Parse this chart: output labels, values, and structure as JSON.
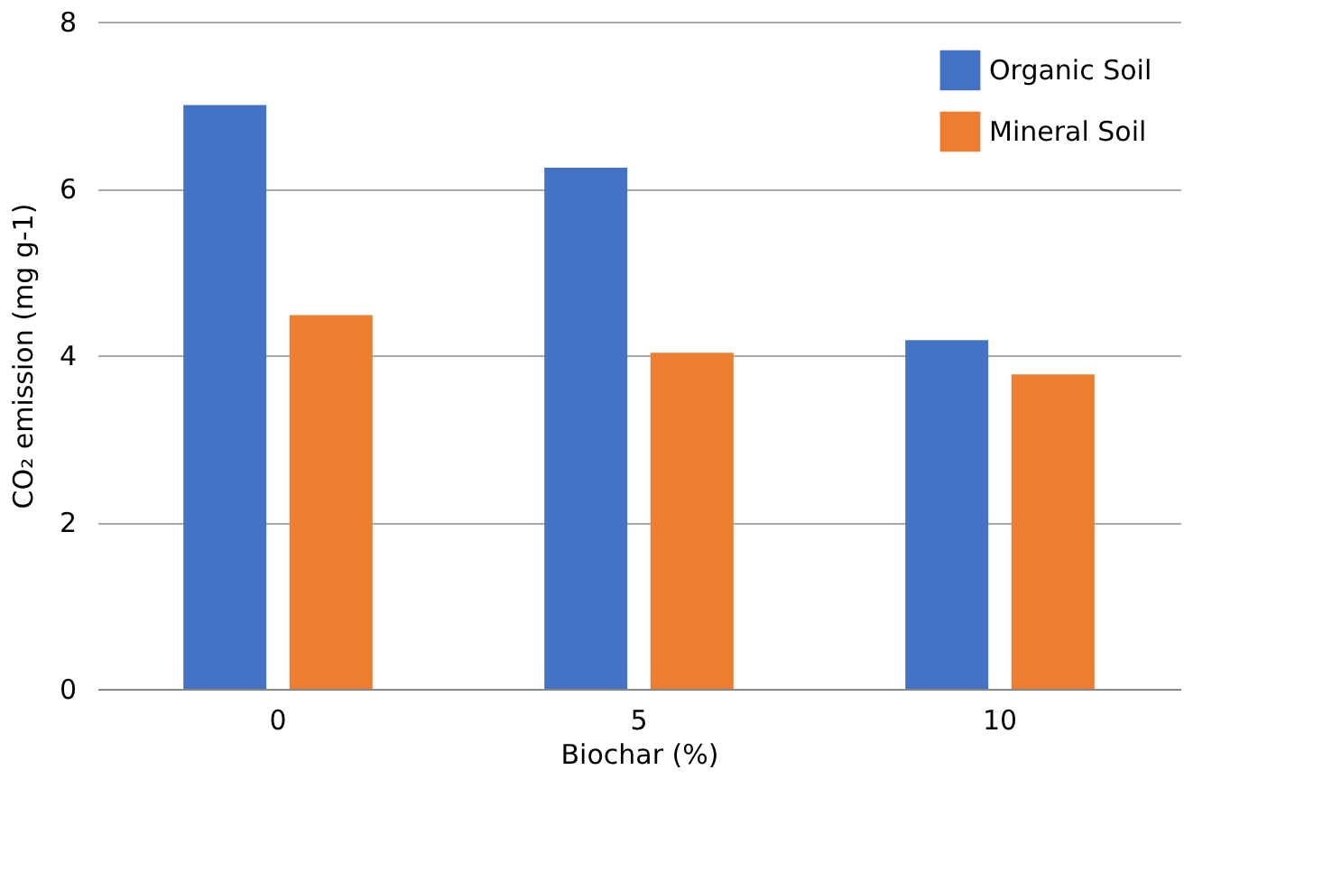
{
  "chart_data": {
    "type": "bar",
    "xlabel": "Biochar (%)",
    "ylabel": "CO₂ emission (mg g-1)",
    "categories": [
      "0",
      "5",
      "10"
    ],
    "series": [
      {
        "name": "Organic Soil",
        "color": "#4472c4",
        "values": [
          7.0,
          6.25,
          4.18
        ]
      },
      {
        "name": "Mineral Soil",
        "color": "#ed7d31",
        "values": [
          4.48,
          4.03,
          3.77
        ]
      }
    ],
    "ylim": [
      0,
      8
    ],
    "yticks": [
      0,
      2,
      4,
      6,
      8
    ],
    "grid": "y",
    "legend": "top right"
  }
}
